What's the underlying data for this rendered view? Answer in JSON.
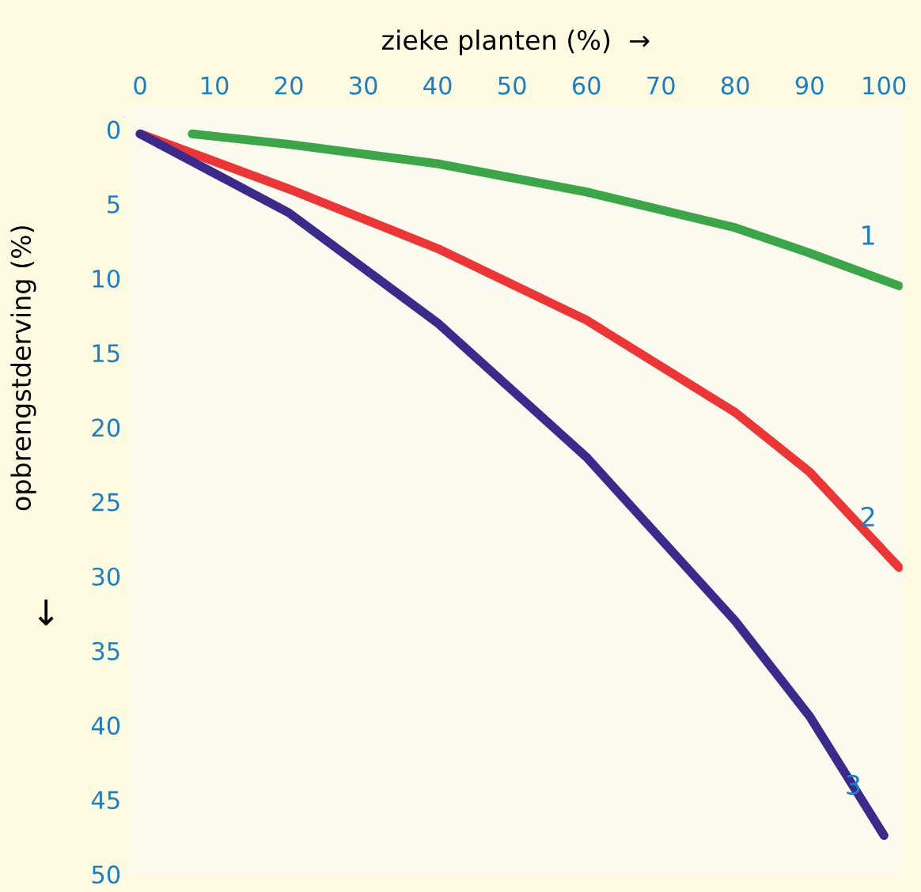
{
  "chart_data": {
    "type": "line",
    "xlabel": "zieke planten (%)  →",
    "ylabel": "opbrengstderving (%)",
    "annotations": [
      "↓"
    ],
    "xlim": [
      -1.5,
      102.5
    ],
    "ylim": [
      50,
      -1.5
    ],
    "xticks": [
      0,
      10,
      20,
      30,
      40,
      50,
      60,
      70,
      80,
      90,
      100
    ],
    "yticks": [
      0,
      5,
      10,
      15,
      20,
      25,
      30,
      35,
      40,
      45,
      50
    ],
    "grid": false,
    "legend": false,
    "marker": "none",
    "line_style": "solid",
    "series": [
      {
        "name": "1",
        "color": "#3aa648",
        "x": [
          7,
          20,
          40,
          60,
          80,
          90,
          102
        ],
        "values": [
          0.3,
          1,
          2.3,
          4.2,
          6.6,
          8.3,
          10.5
        ]
      },
      {
        "name": "2",
        "color": "#ee3535",
        "x": [
          0,
          20,
          40,
          60,
          80,
          90,
          102
        ],
        "values": [
          0.3,
          4,
          8,
          12.8,
          19,
          23,
          29.4
        ]
      },
      {
        "name": "3",
        "color": "#3a2a8c",
        "x": [
          0,
          20,
          40,
          60,
          80,
          90,
          100
        ],
        "values": [
          0.3,
          5.6,
          13,
          22,
          33,
          39.4,
          47.4
        ]
      }
    ]
  }
}
